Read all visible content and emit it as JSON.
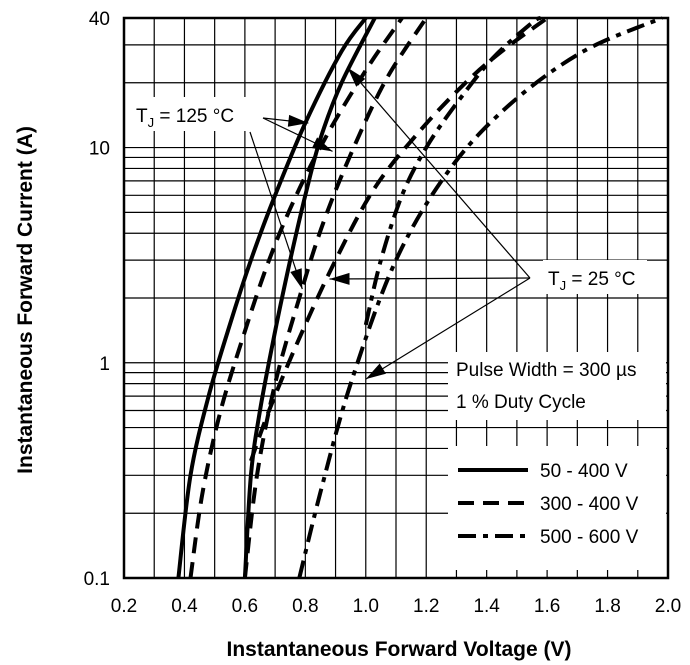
{
  "chart_data": {
    "type": "line",
    "title": "",
    "xlabel": "Instantaneous Forward Voltage (V)",
    "ylabel": "Instantaneous Forward Current (A)",
    "x_scale": "linear",
    "y_scale": "log",
    "xlim": [
      0.2,
      2.0
    ],
    "ylim": [
      0.1,
      40
    ],
    "x_ticks": [
      "0.2",
      "0.4",
      "0.6",
      "0.8",
      "1.0",
      "1.2",
      "1.4",
      "1.6",
      "1.8",
      "2.0"
    ],
    "y_ticks": [
      "0.1",
      "1",
      "10",
      "40"
    ],
    "grid": true,
    "legend_position": "bottom-right",
    "series": [
      {
        "name": "50 - 400 V",
        "style": "solid",
        "condition": "TJ = 125 °C",
        "x": [
          0.38,
          0.42,
          0.48,
          0.55,
          0.62,
          0.7,
          0.8,
          0.92,
          1.0
        ],
        "y": [
          0.1,
          0.3,
          0.7,
          1.5,
          3,
          6,
          13,
          28,
          40
        ]
      },
      {
        "name": "50 - 400 V",
        "style": "solid",
        "condition": "TJ = 25 °C",
        "x": [
          0.6,
          0.62,
          0.65,
          0.7,
          0.75,
          0.8,
          0.85,
          0.92,
          1.03
        ],
        "y": [
          0.1,
          0.3,
          0.6,
          1.4,
          3,
          6,
          11,
          20,
          40
        ]
      },
      {
        "name": "300 - 400 V",
        "style": "dashed",
        "condition": "TJ = 125 °C",
        "x": [
          0.42,
          0.46,
          0.52,
          0.6,
          0.68,
          0.77,
          0.88,
          1.01,
          1.12
        ],
        "y": [
          0.1,
          0.25,
          0.6,
          1.4,
          3,
          6,
          12,
          24,
          40
        ]
      },
      {
        "name": "300 - 400 V",
        "style": "dashed",
        "condition": "TJ = 25 °C",
        "x": [
          0.6,
          0.64,
          0.7,
          0.78,
          0.86,
          0.96,
          1.07,
          1.2
        ],
        "y": [
          0.1,
          0.3,
          0.8,
          2,
          4.5,
          10,
          21,
          40
        ]
      },
      {
        "name": "300 - 400 V",
        "style": "dashed",
        "condition": "TJ = 25 °C",
        "x": [
          0.62,
          0.68,
          0.78,
          0.9,
          1.03,
          1.18,
          1.33,
          1.45,
          1.6
        ],
        "y": [
          0.35,
          0.6,
          1.3,
          3,
          6.5,
          12,
          20,
          28,
          40
        ]
      },
      {
        "name": "500 - 600 V",
        "style": "dash-dot",
        "condition": "TJ = 125 °C",
        "x": [
          0.78,
          0.85,
          0.95,
          1.1,
          1.28,
          1.48,
          1.72,
          1.98
        ],
        "y": [
          0.1,
          0.25,
          0.8,
          3,
          8,
          16,
          28,
          40
        ]
      },
      {
        "name": "500 - 600 V",
        "style": "dash-dot",
        "condition": "TJ = 25 °C",
        "x": [
          1.0,
          1.05,
          1.12,
          1.2,
          1.3,
          1.42,
          1.55,
          1.58
        ],
        "y": [
          1.5,
          3,
          6,
          10,
          16,
          26,
          38,
          40
        ]
      }
    ],
    "annotations": {
      "tj125": {
        "main": "T",
        "sub": "J",
        "rest": " = 125 °C"
      },
      "tj25": {
        "main": "T",
        "sub": "J",
        "rest": " = 25 °C"
      },
      "pulse": "Pulse Width = 300 µs",
      "duty": "1 % Duty Cycle"
    }
  }
}
